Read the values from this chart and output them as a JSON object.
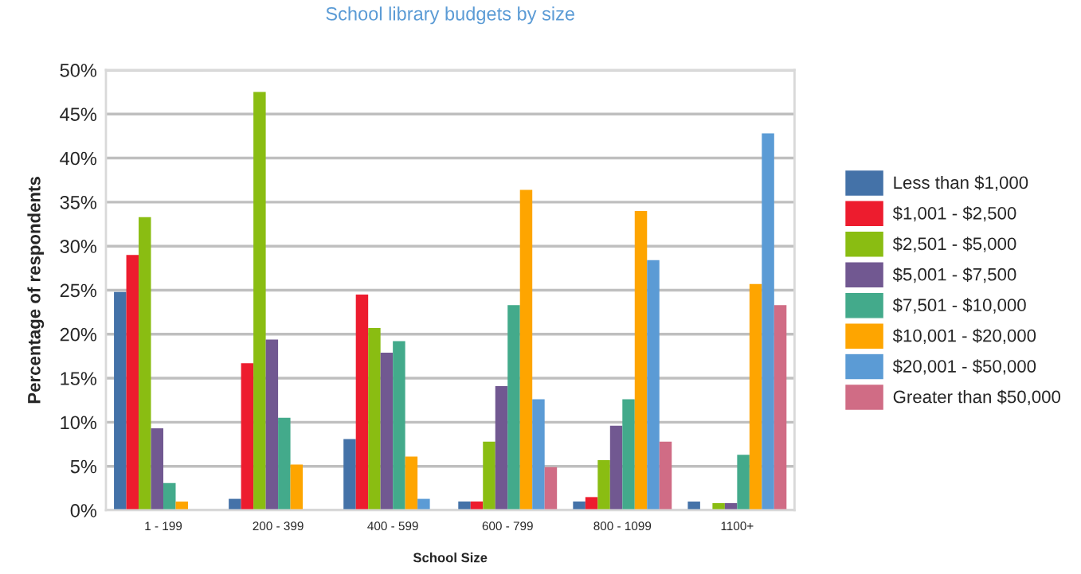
{
  "chart_data": {
    "type": "bar",
    "title": "School library budgets by size",
    "xlabel": "School Size",
    "ylabel": "Percentage of respondents",
    "categories": [
      "1 - 199",
      "200 - 399",
      "400 - 599",
      "600 - 799",
      "800 - 1099",
      "1100+"
    ],
    "series": [
      {
        "name": "Less than $1,000",
        "color": "#4472a8",
        "values": [
          24.8,
          1.3,
          8.1,
          1.0,
          1.0,
          1.0
        ]
      },
      {
        "name": "$1,001 - $2,500",
        "color": "#ed1c2e",
        "values": [
          29.0,
          16.7,
          24.5,
          1.0,
          1.5,
          null
        ]
      },
      {
        "name": "$2,501 - $5,000",
        "color": "#8abd12",
        "values": [
          33.3,
          47.5,
          20.7,
          7.8,
          5.7,
          0.8
        ]
      },
      {
        "name": "$5,001 - $7,500",
        "color": "#715891",
        "values": [
          9.3,
          19.4,
          17.9,
          14.1,
          9.6,
          0.8
        ]
      },
      {
        "name": "$7,501 - $10,000",
        "color": "#43aa8b",
        "values": [
          3.1,
          10.5,
          19.2,
          23.3,
          12.6,
          6.3
        ]
      },
      {
        "name": "$10,001 - $20,000",
        "color": "#fea500",
        "values": [
          1.0,
          5.2,
          6.1,
          36.4,
          34.0,
          25.7
        ]
      },
      {
        "name": "$20,001 - $50,000",
        "color": "#5b9bd5",
        "values": [
          null,
          null,
          1.3,
          12.6,
          28.4,
          42.8
        ]
      },
      {
        "name": "Greater than $50,000",
        "color": "#d06c85",
        "values": [
          null,
          null,
          null,
          4.9,
          7.8,
          23.3
        ]
      }
    ],
    "ylim": [
      0,
      50
    ],
    "yticks": [
      {
        "value": 0,
        "label": "0%"
      },
      {
        "value": 5,
        "label": "5%"
      },
      {
        "value": 10,
        "label": "10%"
      },
      {
        "value": 15,
        "label": "15%"
      },
      {
        "value": 20,
        "label": "20%"
      },
      {
        "value": 25,
        "label": "25%"
      },
      {
        "value": 30,
        "label": "30%"
      },
      {
        "value": 35,
        "label": "35%"
      },
      {
        "value": 40,
        "label": "40%"
      },
      {
        "value": 45,
        "label": "45%"
      },
      {
        "value": 50,
        "label": "50%"
      }
    ],
    "grid": "y",
    "legend": "right"
  }
}
